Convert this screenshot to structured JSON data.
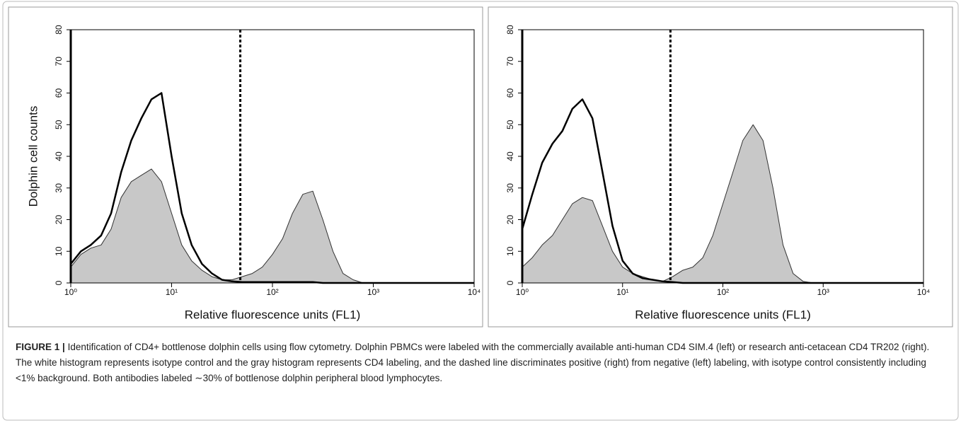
{
  "chart_data": [
    {
      "type": "histogram",
      "ylabel": "Dolphin cell counts",
      "xlabel": "Relative fluorescence units (FL1)",
      "log_x": true,
      "threshold": 48,
      "x": [
        1,
        1.26,
        1.58,
        2,
        2.51,
        3.16,
        3.98,
        5.01,
        6.31,
        7.94,
        10,
        12.6,
        15.8,
        20,
        25.1,
        31.6,
        39.8,
        50.1,
        63.1,
        79.4,
        100,
        126,
        158,
        200,
        251,
        316,
        398,
        501,
        631,
        794,
        1000,
        1259,
        1585,
        1995,
        2512,
        3162,
        3981,
        5012,
        6310,
        7943,
        10000
      ],
      "series": [
        {
          "color": "#333333",
          "fill": "#c8c8c8",
          "values": [
            5,
            9,
            11,
            12,
            17,
            27,
            32,
            34,
            36,
            32,
            22,
            12,
            7,
            4,
            2,
            1,
            1,
            2,
            3,
            5,
            9,
            14,
            22,
            28,
            29,
            20,
            10,
            3,
            1,
            0,
            0,
            0,
            0,
            0,
            0,
            0,
            0,
            0,
            0,
            0,
            0
          ]
        },
        {
          "color": "#000000",
          "values": [
            6,
            10,
            12,
            15,
            22,
            35,
            45,
            52,
            58,
            60,
            40,
            22,
            12,
            6,
            3,
            1,
            0.5,
            0.3,
            0.3,
            0.3,
            0.3,
            0.3,
            0.3,
            0.3,
            0.3,
            0,
            0,
            0,
            0,
            0,
            0,
            0,
            0,
            0,
            0,
            0,
            0,
            0,
            0,
            0,
            0
          ]
        }
      ],
      "xlim": [
        1,
        10000
      ],
      "xticks": [
        {
          "value": 1,
          "label": "10⁰"
        },
        {
          "value": 10,
          "label": "10¹"
        },
        {
          "value": 100,
          "label": "10²"
        },
        {
          "value": 1000,
          "label": "10³"
        },
        {
          "value": 10000,
          "label": "10⁴"
        }
      ],
      "ylim": [
        0,
        80
      ],
      "yticks": [
        0,
        10,
        20,
        30,
        40,
        50,
        60,
        70,
        80
      ]
    },
    {
      "type": "histogram",
      "xlabel": "Relative fluorescence units (FL1)",
      "log_x": true,
      "threshold": 30,
      "x": [
        1,
        1.26,
        1.58,
        2,
        2.51,
        3.16,
        3.98,
        5.01,
        6.31,
        7.94,
        10,
        12.6,
        15.8,
        20,
        25.1,
        31.6,
        39.8,
        50.1,
        63.1,
        79.4,
        100,
        126,
        158,
        200,
        251,
        316,
        398,
        501,
        631,
        794,
        1000,
        1259,
        1585,
        1995,
        2512,
        3162,
        3981,
        5012,
        6310,
        7943,
        10000
      ],
      "series": [
        {
          "color": "#333333",
          "fill": "#c8c8c8",
          "values": [
            5,
            8,
            12,
            15,
            20,
            25,
            27,
            26,
            18,
            10,
            5,
            3,
            2,
            1,
            0.5,
            2,
            4,
            5,
            8,
            15,
            25,
            35,
            45,
            50,
            45,
            30,
            12,
            3,
            0.5,
            0,
            0,
            0,
            0,
            0,
            0,
            0,
            0,
            0,
            0,
            0,
            0
          ]
        },
        {
          "color": "#000000",
          "values": [
            17,
            28,
            38,
            44,
            48,
            55,
            58,
            52,
            35,
            18,
            7,
            3,
            1.5,
            1,
            0.5,
            0.3,
            0,
            0,
            0,
            0,
            0,
            0,
            0,
            0,
            0,
            0,
            0,
            0,
            0,
            0,
            0,
            0,
            0,
            0,
            0,
            0,
            0,
            0,
            0,
            0,
            0
          ]
        }
      ],
      "xlim": [
        1,
        10000
      ],
      "xticks": [
        {
          "value": 1,
          "label": "10⁰"
        },
        {
          "value": 10,
          "label": "10¹"
        },
        {
          "value": 100,
          "label": "10²"
        },
        {
          "value": 1000,
          "label": "10³"
        },
        {
          "value": 10000,
          "label": "10⁴"
        }
      ],
      "ylim": [
        0,
        80
      ],
      "yticks": [
        0,
        10,
        20,
        30,
        40,
        50,
        60,
        70,
        80
      ]
    }
  ],
  "caption": {
    "label": "FIGURE 1 |",
    "text": "Identification of CD4+ bottlenose dolphin cells using flow cytometry. Dolphin PBMCs were labeled with the commercially available anti-human CD4 SIM.4 (left) or research anti-cetacean CD4 TR202 (right). The white histogram represents isotype control and the gray histogram represents CD4 labeling, and the dashed line discriminates positive (right) from negative (left) labeling, with isotype control consistently including <1% background. Both antibodies labeled ∼30% of bottlenose dolphin peripheral blood lymphocytes."
  }
}
